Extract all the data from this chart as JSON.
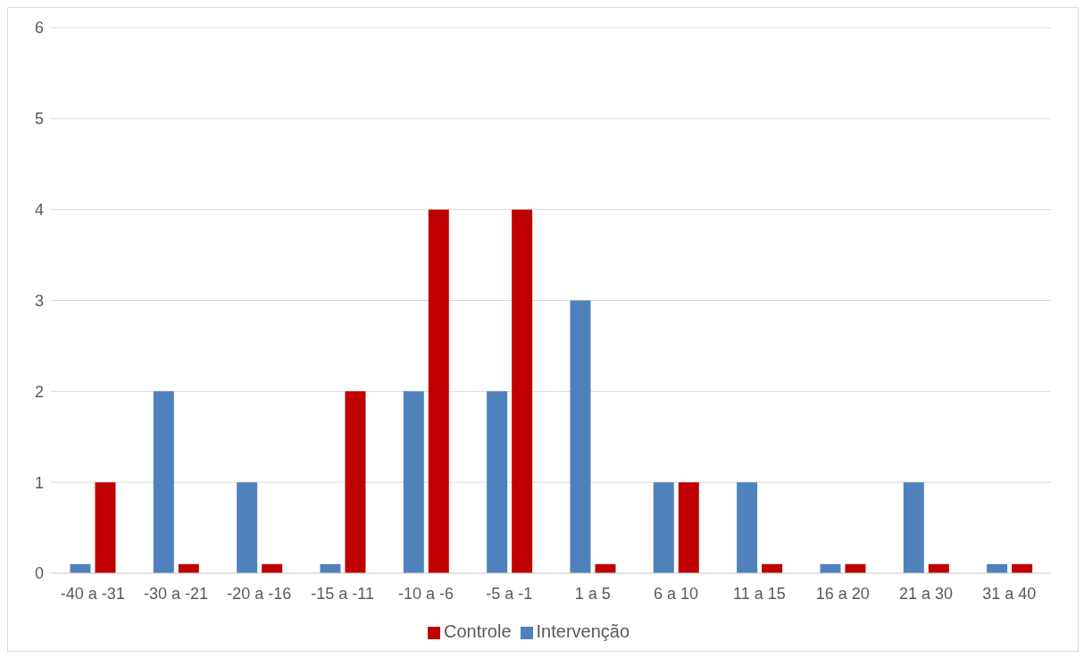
{
  "chart_data": {
    "type": "bar",
    "categories": [
      "-40 a -31",
      "-30 a -21",
      "-20 a -16",
      "-15 a -11",
      "-10 a -6",
      "-5 a -1",
      "1 a 5",
      "6 a 10",
      "11 a 15",
      "16 a 20",
      "21 a 30",
      "31 a 40"
    ],
    "series": [
      {
        "name": "Intervenção",
        "color": "#4f81bd",
        "values": [
          0.1,
          2,
          1,
          0.1,
          2,
          2,
          3,
          1,
          1,
          0.1,
          1,
          0.1
        ]
      },
      {
        "name": "Controle",
        "color": "#c00000",
        "values": [
          1,
          0.1,
          0.1,
          2,
          4,
          4,
          0.1,
          1,
          0.1,
          0.1,
          0.1,
          0.1
        ]
      }
    ],
    "ylim": [
      0,
      6
    ],
    "yticks": [
      0,
      1,
      2,
      3,
      4,
      5,
      6
    ],
    "grid": "y",
    "legend": "bottom"
  }
}
